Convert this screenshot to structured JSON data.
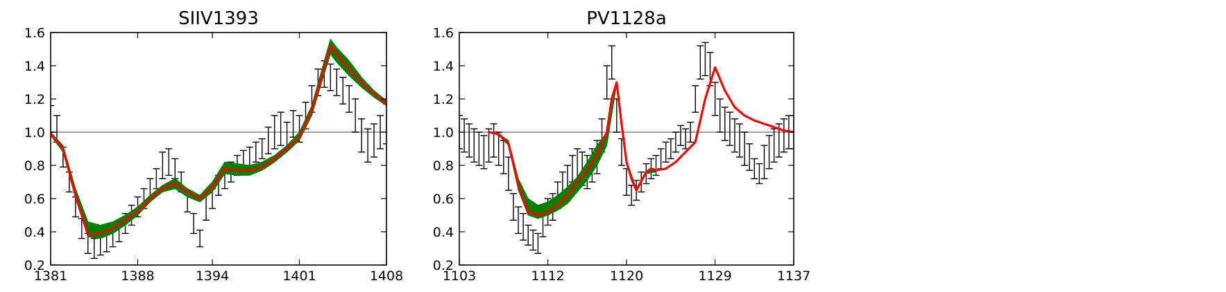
{
  "chart_data": [
    {
      "type": "line",
      "title": "SIIV1393",
      "xlabel": "",
      "ylabel": "",
      "xlim": [
        1381,
        1408
      ],
      "ylim": [
        0.2,
        1.6
      ],
      "x_ticks": [
        1381,
        1388,
        1394,
        1401,
        1408
      ],
      "x_tick_labels": [
        "1381",
        "1388",
        "1394",
        "1401",
        "1408"
      ],
      "y_ticks": [
        0.2,
        0.4,
        0.6,
        0.8,
        1.0,
        1.2,
        1.4,
        1.6
      ],
      "y_tick_labels": [
        "0.2",
        "0.4",
        "0.6",
        "0.8",
        "1.0",
        "1.2",
        "1.4",
        "1.6"
      ],
      "continuum": 1.0,
      "colors": {
        "data": "#000000",
        "envelope": "#008000",
        "model": "#ff0000",
        "continuum": "#808080"
      },
      "series": [
        {
          "role": "observed",
          "style": "errorbar",
          "x": [
            1381.0,
            1381.5,
            1382.0,
            1382.5,
            1383.0,
            1383.5,
            1384.0,
            1384.5,
            1385.0,
            1385.5,
            1386.0,
            1386.5,
            1387.0,
            1387.5,
            1388.0,
            1388.5,
            1389.0,
            1389.5,
            1390.0,
            1390.5,
            1391.0,
            1391.5,
            1392.0,
            1392.5,
            1393.0,
            1393.5,
            1394.0,
            1394.5,
            1395.0,
            1395.5,
            1396.0,
            1396.5,
            1397.0,
            1397.5,
            1398.0,
            1398.5,
            1399.0,
            1399.5,
            1400.0,
            1400.5,
            1401.0,
            1401.5,
            1402.0,
            1402.5,
            1403.0,
            1403.5,
            1404.0,
            1404.5,
            1405.0,
            1405.5,
            1406.0,
            1406.5,
            1407.0,
            1407.5,
            1408.0
          ],
          "y": [
            1.08,
            1.02,
            0.85,
            0.7,
            0.55,
            0.42,
            0.33,
            0.3,
            0.32,
            0.34,
            0.37,
            0.4,
            0.45,
            0.5,
            0.55,
            0.6,
            0.66,
            0.72,
            0.8,
            0.82,
            0.78,
            0.7,
            0.58,
            0.45,
            0.36,
            0.55,
            0.6,
            0.68,
            0.72,
            0.76,
            0.8,
            0.83,
            0.85,
            0.88,
            0.9,
            0.95,
            1.0,
            1.02,
            0.98,
            1.05,
            1.02,
            1.1,
            1.2,
            1.3,
            1.35,
            1.33,
            1.3,
            1.25,
            1.2,
            1.1,
            0.98,
            0.92,
            0.95,
            1.0,
            1.05
          ],
          "err": [
            0.08,
            0.08,
            0.06,
            0.06,
            0.06,
            0.06,
            0.06,
            0.06,
            0.06,
            0.06,
            0.06,
            0.06,
            0.06,
            0.06,
            0.06,
            0.06,
            0.06,
            0.06,
            0.08,
            0.08,
            0.06,
            0.06,
            0.06,
            0.06,
            0.05,
            0.08,
            0.06,
            0.06,
            0.06,
            0.06,
            0.06,
            0.06,
            0.06,
            0.06,
            0.06,
            0.08,
            0.1,
            0.1,
            0.08,
            0.08,
            0.08,
            0.08,
            0.08,
            0.08,
            0.08,
            0.08,
            0.08,
            0.08,
            0.08,
            0.1,
            0.1,
            0.1,
            0.1,
            0.1,
            0.12
          ]
        },
        {
          "role": "envelope",
          "style": "band",
          "x": [
            1381.0,
            1382.0,
            1383.0,
            1384.0,
            1385.0,
            1386.0,
            1387.0,
            1388.0,
            1389.0,
            1390.0,
            1391.0,
            1392.0,
            1393.0,
            1394.0,
            1395.0,
            1396.0,
            1397.0,
            1398.0,
            1399.0,
            1400.0,
            1401.0,
            1402.0,
            1403.0,
            1403.5,
            1404.0,
            1405.0,
            1406.0,
            1407.0,
            1408.0
          ],
          "lower": [
            0.98,
            0.88,
            0.6,
            0.37,
            0.36,
            0.39,
            0.44,
            0.5,
            0.58,
            0.64,
            0.66,
            0.61,
            0.58,
            0.64,
            0.75,
            0.74,
            0.74,
            0.77,
            0.82,
            0.88,
            0.95,
            1.1,
            1.35,
            1.47,
            1.42,
            1.34,
            1.27,
            1.21,
            1.16
          ],
          "upper": [
            1.0,
            0.92,
            0.66,
            0.46,
            0.44,
            0.46,
            0.5,
            0.55,
            0.62,
            0.68,
            0.72,
            0.66,
            0.62,
            0.7,
            0.82,
            0.81,
            0.8,
            0.82,
            0.86,
            0.92,
            1.0,
            1.16,
            1.43,
            1.56,
            1.51,
            1.43,
            1.33,
            1.25,
            1.19
          ]
        },
        {
          "role": "model",
          "style": "line",
          "x": [
            1381.0,
            1382.0,
            1383.0,
            1384.0,
            1385.0,
            1386.0,
            1387.0,
            1388.0,
            1389.0,
            1390.0,
            1391.0,
            1392.0,
            1393.0,
            1394.0,
            1395.0,
            1396.0,
            1397.0,
            1398.0,
            1399.0,
            1400.0,
            1401.0,
            1402.0,
            1403.0,
            1403.5,
            1404.0,
            1405.0,
            1406.0,
            1407.0,
            1408.0
          ],
          "y": [
            0.99,
            0.9,
            0.62,
            0.38,
            0.39,
            0.42,
            0.47,
            0.52,
            0.6,
            0.66,
            0.69,
            0.64,
            0.6,
            0.67,
            0.78,
            0.77,
            0.77,
            0.79,
            0.84,
            0.9,
            0.97,
            1.13,
            1.39,
            1.52,
            1.47,
            1.38,
            1.3,
            1.23,
            1.17
          ]
        }
      ]
    },
    {
      "type": "line",
      "title": "PV1128a",
      "xlabel": "",
      "ylabel": "",
      "xlim": [
        1103,
        1137
      ],
      "ylim": [
        0.2,
        1.6
      ],
      "x_ticks": [
        1103,
        1112,
        1120,
        1129,
        1137
      ],
      "x_tick_labels": [
        "1103",
        "1112",
        "1120",
        "1129",
        "1137"
      ],
      "y_ticks": [
        0.2,
        0.4,
        0.6,
        0.8,
        1.0,
        1.2,
        1.4,
        1.6
      ],
      "y_tick_labels": [
        "0.2",
        "0.4",
        "0.6",
        "0.8",
        "1.0",
        "1.2",
        "1.4",
        "1.6"
      ],
      "continuum": 1.0,
      "colors": {
        "data": "#000000",
        "envelope": "#008000",
        "model": "#ff0000",
        "continuum": "#808080"
      },
      "series": [
        {
          "role": "observed",
          "style": "errorbar",
          "x": [
            1103.0,
            1103.5,
            1104.0,
            1104.5,
            1105.0,
            1105.5,
            1106.0,
            1106.5,
            1107.0,
            1107.5,
            1108.0,
            1108.5,
            1109.0,
            1109.5,
            1110.0,
            1110.5,
            1111.0,
            1111.5,
            1112.0,
            1112.5,
            1113.0,
            1113.5,
            1114.0,
            1114.5,
            1115.0,
            1115.5,
            1116.0,
            1116.5,
            1117.0,
            1117.5,
            1118.0,
            1118.5,
            1119.0,
            1119.5,
            1120.0,
            1120.5,
            1121.0,
            1121.5,
            1122.0,
            1122.5,
            1123.0,
            1123.5,
            1124.0,
            1124.5,
            1125.0,
            1125.5,
            1126.0,
            1126.5,
            1127.0,
            1127.5,
            1128.0,
            1128.5,
            1129.0,
            1129.5,
            1130.0,
            1130.5,
            1131.0,
            1131.5,
            1132.0,
            1132.5,
            1133.0,
            1133.5,
            1134.0,
            1134.5,
            1135.0,
            1135.5,
            1136.0,
            1136.5,
            1137.0
          ],
          "y": [
            1.0,
            0.98,
            0.95,
            0.92,
            0.9,
            0.88,
            0.92,
            0.95,
            0.9,
            0.85,
            0.75,
            0.55,
            0.47,
            0.43,
            0.38,
            0.35,
            0.33,
            0.45,
            0.52,
            0.55,
            0.62,
            0.68,
            0.72,
            0.78,
            0.8,
            0.78,
            0.76,
            0.8,
            0.85,
            0.98,
            1.3,
            1.42,
            1.1,
            0.88,
            0.7,
            0.62,
            0.65,
            0.7,
            0.75,
            0.78,
            0.8,
            0.84,
            0.88,
            0.9,
            0.94,
            0.98,
            0.96,
            1.0,
            1.2,
            1.42,
            1.44,
            1.38,
            1.2,
            1.1,
            1.05,
            1.02,
            0.98,
            0.95,
            0.9,
            0.85,
            0.78,
            0.75,
            0.82,
            0.88,
            0.92,
            0.95,
            0.98,
            1.0,
            1.0
          ],
          "err": [
            0.1,
            0.1,
            0.1,
            0.1,
            0.1,
            0.1,
            0.1,
            0.1,
            0.1,
            0.1,
            0.1,
            0.08,
            0.08,
            0.08,
            0.06,
            0.06,
            0.06,
            0.08,
            0.08,
            0.08,
            0.08,
            0.08,
            0.08,
            0.08,
            0.1,
            0.1,
            0.1,
            0.1,
            0.1,
            0.1,
            0.1,
            0.1,
            0.1,
            0.08,
            0.08,
            0.06,
            0.06,
            0.06,
            0.06,
            0.06,
            0.06,
            0.06,
            0.06,
            0.06,
            0.06,
            0.06,
            0.06,
            0.06,
            0.08,
            0.1,
            0.1,
            0.1,
            0.1,
            0.1,
            0.1,
            0.1,
            0.1,
            0.1,
            0.1,
            0.08,
            0.06,
            0.06,
            0.1,
            0.1,
            0.1,
            0.1,
            0.1,
            0.1,
            0.1
          ]
        },
        {
          "role": "envelope",
          "style": "band",
          "x": [
            1106.0,
            1107.0,
            1108.0,
            1109.0,
            1110.0,
            1111.0,
            1112.0,
            1113.0,
            1114.0,
            1115.0,
            1116.0,
            1117.0,
            1118.0,
            1119.0,
            1120.0,
            1121.0,
            1122.0,
            1123.0
          ],
          "lower": [
            1.0,
            0.98,
            0.92,
            0.65,
            0.5,
            0.48,
            0.5,
            0.53,
            0.57,
            0.64,
            0.71,
            0.8,
            0.92,
            1.29,
            0.82,
            0.64,
            0.75,
            0.76
          ],
          "upper": [
            1.0,
            0.99,
            0.95,
            0.72,
            0.6,
            0.56,
            0.58,
            0.62,
            0.67,
            0.73,
            0.82,
            0.92,
            1.0,
            1.3,
            0.83,
            0.66,
            0.77,
            0.77
          ]
        },
        {
          "role": "model",
          "style": "line",
          "x": [
            1106.0,
            1107.0,
            1108.0,
            1109.0,
            1110.0,
            1111.0,
            1112.0,
            1113.0,
            1114.0,
            1115.0,
            1116.0,
            1117.0,
            1118.0,
            1118.5,
            1119.0,
            1119.5,
            1120.0,
            1120.5,
            1121.0,
            1122.0,
            1122.5,
            1123.0,
            1124.0,
            1125.0,
            1126.0,
            1127.0,
            1128.0,
            1129.0,
            1130.0,
            1131.0,
            1132.0,
            1133.0,
            1134.0,
            1135.0,
            1136.0,
            1137.0
          ],
          "y": [
            1.0,
            0.99,
            0.93,
            0.68,
            0.52,
            0.5,
            0.52,
            0.56,
            0.62,
            0.7,
            0.77,
            0.86,
            1.0,
            1.2,
            1.3,
            1.05,
            0.82,
            0.72,
            0.65,
            0.76,
            0.78,
            0.77,
            0.78,
            0.82,
            0.88,
            0.94,
            1.2,
            1.39,
            1.25,
            1.15,
            1.1,
            1.07,
            1.05,
            1.03,
            1.01,
            1.0
          ]
        }
      ]
    }
  ]
}
